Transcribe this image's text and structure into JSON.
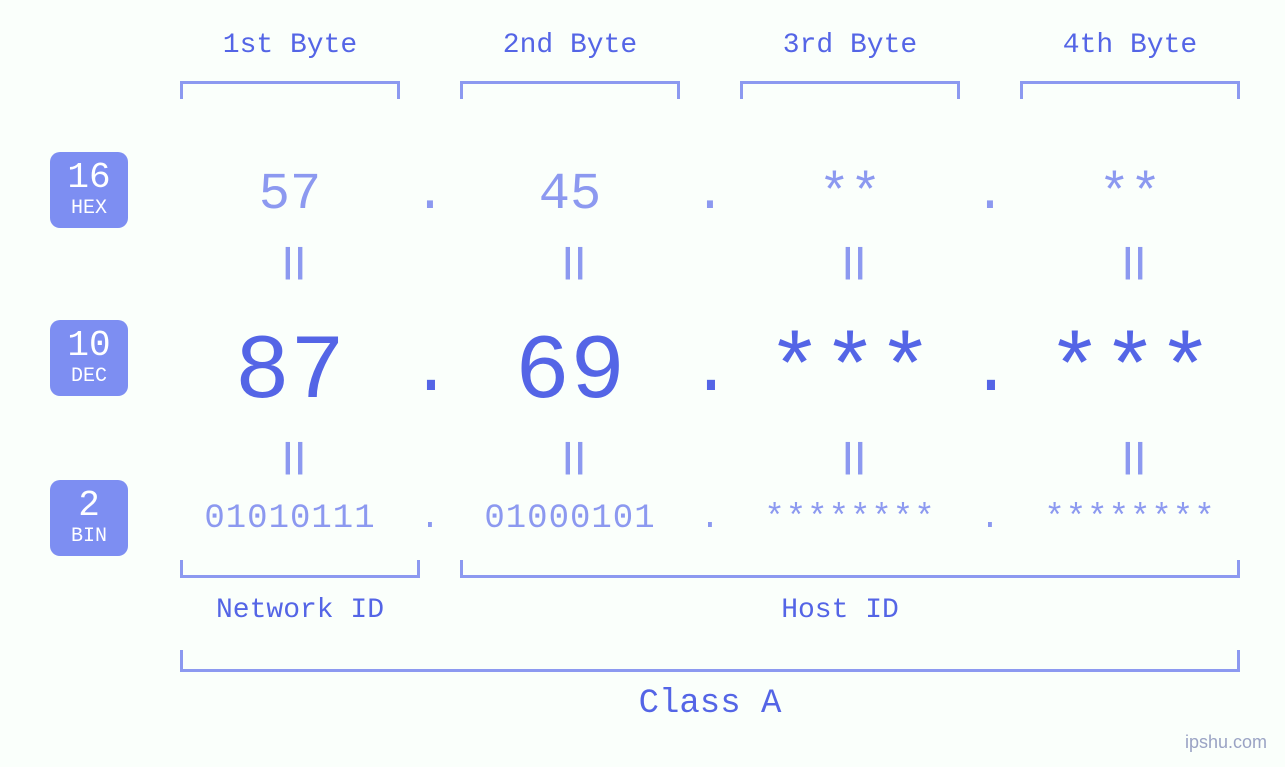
{
  "background_color": "#fafffb",
  "primary_color": "#5465e6",
  "light_color": "#8c99f0",
  "badge_bg": "#7d8ef2",
  "headers": {
    "b1": "1st Byte",
    "b2": "2nd Byte",
    "b3": "3rd Byte",
    "b4": "4th Byte"
  },
  "badges": {
    "hex": {
      "num": "16",
      "lbl": "HEX"
    },
    "dec": {
      "num": "10",
      "lbl": "DEC"
    },
    "bin": {
      "num": "2",
      "lbl": "BIN"
    }
  },
  "hex": {
    "b1": "57",
    "b2": "45",
    "b3": "**",
    "b4": "**"
  },
  "dec": {
    "b1": "87",
    "b2": "69",
    "b3": "***",
    "b4": "***"
  },
  "bin": {
    "b1": "01010111",
    "b2": "01000101",
    "b3": "********",
    "b4": "********"
  },
  "dot": ".",
  "eq_glyph": "||",
  "labels": {
    "network_id": "Network ID",
    "host_id": "Host ID",
    "class": "Class A"
  },
  "watermark": "ipshu.com",
  "style": {
    "header_fontsize": 28,
    "hex_fontsize": 52,
    "dec_fontsize": 92,
    "bin_fontsize": 34,
    "eq_fontsize": 34,
    "label_fontsize": 28,
    "class_fontsize": 34,
    "badge_num_fontsize": 36,
    "badge_lbl_fontsize": 20,
    "bracket_border_width": 3,
    "bracket_color": "#8c99f0",
    "badge_radius": 10,
    "font_family": "Courier New, monospace"
  }
}
